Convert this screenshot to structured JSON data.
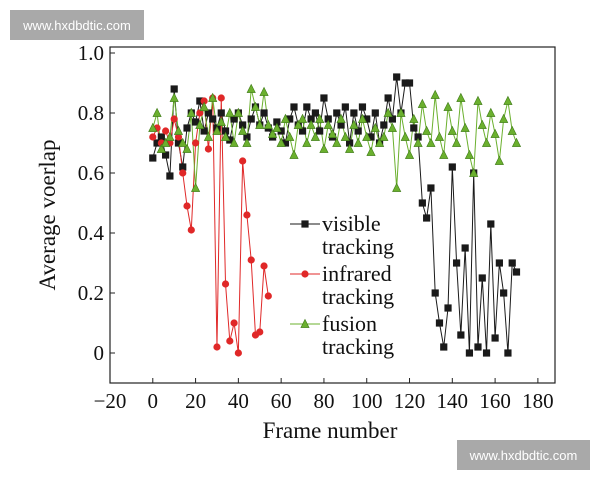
{
  "chart_data": {
    "type": "line",
    "xlabel": "Frame number",
    "ylabel": "Average voerlap",
    "annotations": [
      "www.hxdbdtic.com",
      "www.hxdbdtic.com"
    ],
    "xlim": [
      -20,
      188
    ],
    "ylim": [
      -0.1,
      1.02
    ],
    "xticks": [
      {
        "value": -20,
        "label": "−20"
      },
      0,
      20,
      40,
      60,
      80,
      100,
      120,
      140,
      160,
      180
    ],
    "yticks": [
      0,
      0.2,
      0.4,
      0.6,
      0.8,
      {
        "value": 1,
        "label": "1.0"
      }
    ],
    "legend": "center",
    "series": [
      {
        "name": "visible tracking",
        "color": "#1a1a1a",
        "marker": "square",
        "x": [
          0,
          2,
          4,
          6,
          8,
          10,
          12,
          14,
          16,
          18,
          20,
          22,
          24,
          26,
          28,
          30,
          32,
          34,
          36,
          38,
          40,
          42,
          44,
          46,
          48,
          50,
          52,
          54,
          56,
          58,
          60,
          62,
          64,
          66,
          68,
          70,
          72,
          74,
          76,
          78,
          80,
          82,
          84,
          86,
          88,
          90,
          92,
          94,
          96,
          98,
          100,
          102,
          104,
          106,
          108,
          110,
          112,
          114,
          116,
          118,
          120,
          122,
          124,
          126,
          128,
          130,
          132,
          134,
          136,
          138,
          140,
          142,
          144,
          146,
          148,
          150,
          152,
          154,
          156,
          158,
          160,
          162,
          164,
          166,
          168,
          170
        ],
        "values": [
          0.65,
          0.7,
          0.72,
          0.66,
          0.59,
          0.88,
          0.7,
          0.62,
          0.75,
          0.8,
          0.77,
          0.84,
          0.74,
          0.8,
          0.78,
          0.75,
          0.8,
          0.74,
          0.71,
          0.78,
          0.8,
          0.76,
          0.72,
          0.78,
          0.82,
          0.76,
          0.8,
          0.75,
          0.72,
          0.77,
          0.74,
          0.7,
          0.78,
          0.82,
          0.76,
          0.74,
          0.82,
          0.78,
          0.8,
          0.74,
          0.85,
          0.78,
          0.72,
          0.8,
          0.76,
          0.82,
          0.7,
          0.8,
          0.74,
          0.82,
          0.78,
          0.72,
          0.8,
          0.7,
          0.76,
          0.85,
          0.78,
          0.92,
          0.8,
          0.9,
          0.9,
          0.75,
          0.72,
          0.5,
          0.45,
          0.55,
          0.2,
          0.1,
          0.02,
          0.15,
          0.62,
          0.3,
          0.06,
          0.35,
          0.0,
          0.6,
          0.02,
          0.25,
          0.0,
          0.43,
          0.05,
          0.3,
          0.2,
          0.0,
          0.3,
          0.27
        ]
      },
      {
        "name": "infrared tracking",
        "color": "#e02828",
        "marker": "circle",
        "x": [
          0,
          2,
          4,
          6,
          8,
          10,
          12,
          14,
          16,
          18,
          20,
          22,
          24,
          26,
          28,
          30,
          32,
          34,
          36,
          38,
          40,
          42,
          44,
          46,
          48,
          50,
          52,
          54
        ],
        "values": [
          0.72,
          0.75,
          0.7,
          0.74,
          0.7,
          0.78,
          0.72,
          0.6,
          0.49,
          0.41,
          0.7,
          0.8,
          0.84,
          0.68,
          0.85,
          0.02,
          0.85,
          0.23,
          0.04,
          0.1,
          0.0,
          0.64,
          0.46,
          0.31,
          0.06,
          0.07,
          0.29,
          0.19
        ]
      },
      {
        "name": "fusion tracking",
        "color": "#6bb02e",
        "marker": "triangle",
        "x": [
          0,
          2,
          4,
          6,
          8,
          10,
          12,
          14,
          16,
          18,
          20,
          22,
          24,
          26,
          28,
          30,
          32,
          34,
          36,
          38,
          40,
          42,
          44,
          46,
          48,
          50,
          52,
          54,
          56,
          58,
          60,
          62,
          64,
          66,
          68,
          70,
          72,
          74,
          76,
          78,
          80,
          82,
          84,
          86,
          88,
          90,
          92,
          94,
          96,
          98,
          100,
          102,
          104,
          106,
          108,
          110,
          112,
          114,
          116,
          118,
          120,
          122,
          124,
          126,
          128,
          130,
          132,
          134,
          136,
          138,
          140,
          142,
          144,
          146,
          148,
          150,
          152,
          154,
          156,
          158,
          160,
          162,
          164,
          166,
          168,
          170
        ],
        "values": [
          0.75,
          0.8,
          0.68,
          0.7,
          0.72,
          0.85,
          0.74,
          0.7,
          0.68,
          0.8,
          0.55,
          0.76,
          0.82,
          0.72,
          0.85,
          0.74,
          0.77,
          0.72,
          0.8,
          0.7,
          0.8,
          0.74,
          0.7,
          0.88,
          0.82,
          0.76,
          0.87,
          0.76,
          0.73,
          0.75,
          0.7,
          0.78,
          0.72,
          0.66,
          0.76,
          0.78,
          0.7,
          0.76,
          0.72,
          0.78,
          0.68,
          0.76,
          0.73,
          0.7,
          0.78,
          0.72,
          0.68,
          0.76,
          0.7,
          0.78,
          0.72,
          0.67,
          0.75,
          0.7,
          0.72,
          0.8,
          0.75,
          0.55,
          0.8,
          0.72,
          0.66,
          0.78,
          0.7,
          0.83,
          0.74,
          0.7,
          0.86,
          0.72,
          0.66,
          0.82,
          0.74,
          0.7,
          0.85,
          0.75,
          0.66,
          0.6,
          0.84,
          0.76,
          0.7,
          0.8,
          0.73,
          0.64,
          0.78,
          0.84,
          0.74,
          0.7
        ]
      }
    ]
  }
}
